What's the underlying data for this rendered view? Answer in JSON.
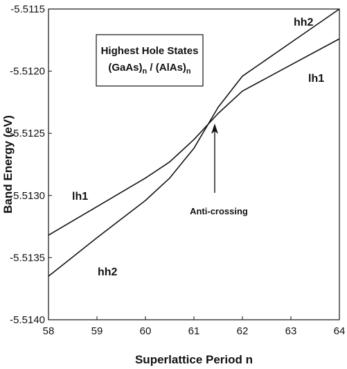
{
  "chart_data": {
    "type": "line",
    "title_box": {
      "line1": "Highest Hole States",
      "line2_part1": "(GaAs)",
      "line2_sub1": "n",
      "line2_part2": " / (AlAs)",
      "line2_sub2": "n"
    },
    "xlabel": "Superlattice Period n",
    "ylabel": "Band Energy (eV)",
    "xlim": [
      58,
      64
    ],
    "ylim": [
      -5.514,
      -5.5115
    ],
    "x_ticks": [
      "58",
      "59",
      "60",
      "61",
      "62",
      "63",
      "64"
    ],
    "y_ticks": [
      "-5.5115",
      "-5.5120",
      "-5.5125",
      "-5.5130",
      "-5.5135",
      "-5.5140"
    ],
    "series": [
      {
        "name": "lh1",
        "x": [
          58,
          59,
          60,
          60.5,
          61,
          61.5,
          62,
          63,
          64
        ],
        "y": [
          -5.51332,
          -5.51309,
          -5.51286,
          -5.51273,
          -5.51255,
          -5.51234,
          -5.51216,
          -5.51195,
          -5.51174
        ]
      },
      {
        "name": "hh2",
        "x": [
          58,
          59,
          60,
          60.5,
          61,
          61.5,
          62,
          63,
          64
        ],
        "y": [
          -5.51365,
          -5.51334,
          -5.51304,
          -5.51286,
          -5.51262,
          -5.51229,
          -5.51204,
          -5.51177,
          -5.5115
        ]
      }
    ],
    "labels": {
      "hh2_top": "hh2",
      "lh1_right": "lh1",
      "lh1_left": "lh1",
      "hh2_bottom": "hh2",
      "anticrossing": "Anti-crossing"
    },
    "anticrossing_x": 61.1,
    "grid": false
  }
}
